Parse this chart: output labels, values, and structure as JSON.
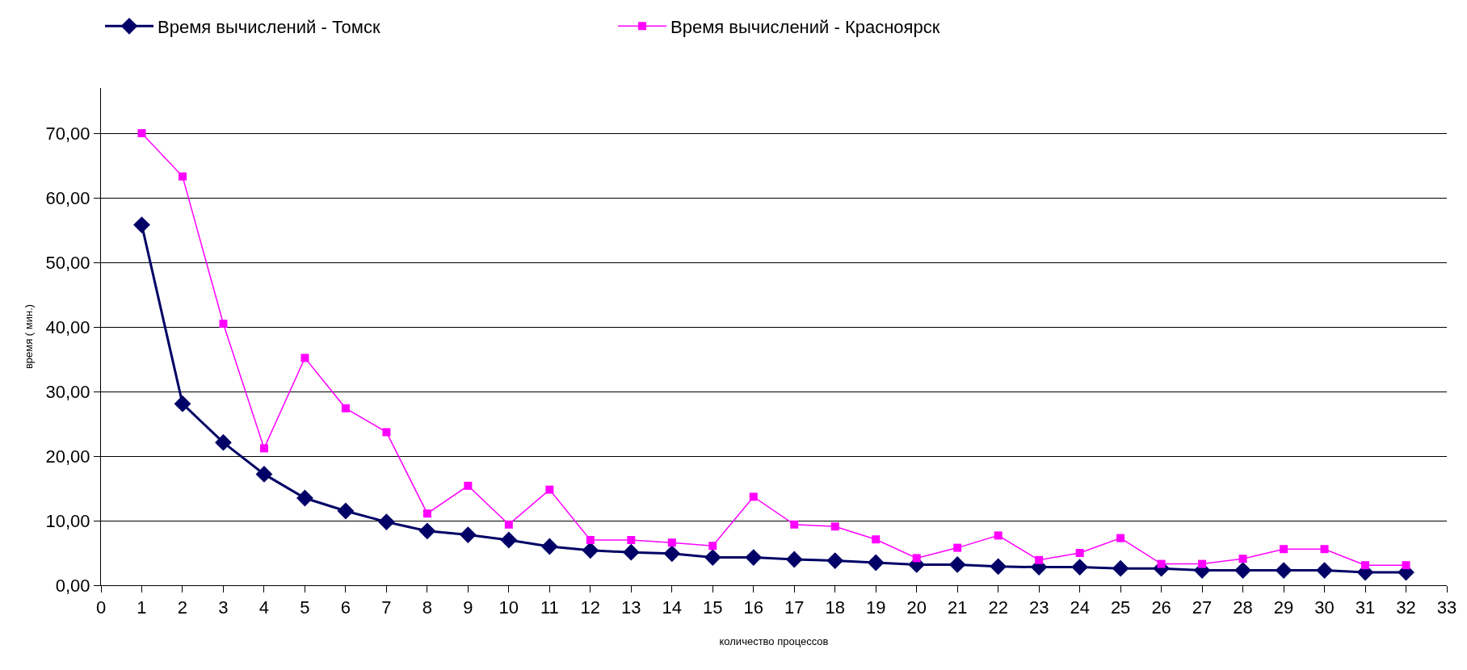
{
  "chart_data": {
    "type": "line",
    "xlabel": "количество процессов",
    "ylabel": "время ( мин.)",
    "x": [
      1,
      2,
      3,
      4,
      5,
      6,
      7,
      8,
      9,
      10,
      11,
      12,
      13,
      14,
      15,
      16,
      17,
      18,
      19,
      20,
      21,
      22,
      23,
      24,
      25,
      26,
      27,
      28,
      29,
      30,
      31,
      32
    ],
    "series": [
      {
        "name": "Время вычислений - Томск",
        "color": "#000066",
        "marker": "diamond",
        "values": [
          55.8,
          28.1,
          22.1,
          17.2,
          13.5,
          11.5,
          9.8,
          8.4,
          7.8,
          7.0,
          6.0,
          5.4,
          5.1,
          4.9,
          4.3,
          4.3,
          4.0,
          3.8,
          3.5,
          3.2,
          3.2,
          2.9,
          2.8,
          2.8,
          2.6,
          2.6,
          2.3,
          2.3,
          2.3,
          2.3,
          2.0,
          2.0
        ]
      },
      {
        "name": "Время вычислений - Красноярск",
        "color": "#ff00ff",
        "marker": "square",
        "values": [
          70.0,
          63.3,
          40.5,
          21.2,
          35.2,
          27.4,
          23.7,
          11.1,
          15.4,
          9.4,
          14.8,
          7.0,
          7.0,
          6.6,
          6.1,
          13.7,
          9.4,
          9.1,
          7.1,
          4.2,
          5.8,
          7.7,
          3.9,
          5.0,
          7.3,
          3.3,
          3.3,
          4.1,
          5.6,
          5.6,
          3.1,
          3.1
        ]
      }
    ],
    "xlim": [
      0,
      33
    ],
    "xticks": [
      0,
      1,
      2,
      3,
      4,
      5,
      6,
      7,
      8,
      9,
      10,
      11,
      12,
      13,
      14,
      15,
      16,
      17,
      18,
      19,
      20,
      21,
      22,
      23,
      24,
      25,
      26,
      27,
      28,
      29,
      30,
      31,
      32,
      33
    ],
    "ylim": [
      0,
      77
    ],
    "yticks": [
      {
        "value": 0,
        "label": "0,00"
      },
      {
        "value": 10,
        "label": "10,00"
      },
      {
        "value": 20,
        "label": "20,00"
      },
      {
        "value": 30,
        "label": "30,00"
      },
      {
        "value": 40,
        "label": "40,00"
      },
      {
        "value": 50,
        "label": "50,00"
      },
      {
        "value": 60,
        "label": "60,00"
      },
      {
        "value": 70,
        "label": "70,00"
      }
    ],
    "grid": "y",
    "legend": "top left",
    "line_style": "solid"
  }
}
